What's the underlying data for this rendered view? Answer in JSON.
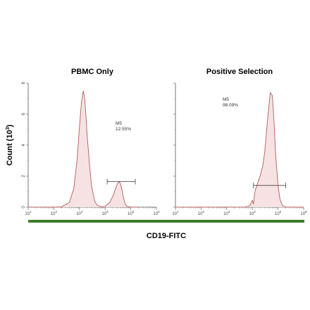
{
  "figure": {
    "x_axis_title": "CD19-FITC",
    "y_axis_title": "Count (10",
    "y_axis_title_exp": "3",
    "y_axis_title_end": ")",
    "bar_color": "#3a7d2c"
  },
  "chart_data": [
    {
      "type": "area",
      "title": "PBMC Only",
      "xscale": "log",
      "xlim": [
        10,
        1000000
      ],
      "ylim": [
        0,
        8
      ],
      "x_ticks": [
        {
          "base": "10",
          "exp": "1"
        },
        {
          "base": "10",
          "exp": "2"
        },
        {
          "base": "10",
          "exp": "3"
        },
        {
          "base": "10",
          "exp": "4"
        },
        {
          "base": "10",
          "exp": "5"
        },
        {
          "base": "10",
          "exp": "6"
        }
      ],
      "y_ticks": [
        "0",
        "2",
        "4",
        "6",
        "8"
      ],
      "series_color": "#b85c5c",
      "fill_color": "#f6e2e2",
      "x": [
        10,
        100,
        200,
        400,
        600,
        800,
        1000,
        1200,
        1400,
        1600,
        1800,
        2000,
        2500,
        3000,
        4000,
        5000,
        7000,
        10000,
        15000,
        20000,
        25000,
        30000,
        35000,
        40000,
        45000,
        50000,
        60000,
        70000,
        100000,
        200000
      ],
      "y": [
        0,
        0,
        0.02,
        0.3,
        1.2,
        3.0,
        5.2,
        6.8,
        7.5,
        7.0,
        5.8,
        4.6,
        2.6,
        1.3,
        0.35,
        0.12,
        0.02,
        0.05,
        0.3,
        0.7,
        1.15,
        1.5,
        1.65,
        1.5,
        1.15,
        0.75,
        0.2,
        0.05,
        0,
        0
      ],
      "gate": {
        "name": "M5",
        "percent": "12.55%",
        "x_start": 12000,
        "x_end": 150000,
        "y_level": 1.65
      }
    },
    {
      "type": "area",
      "title": "Positive Selection",
      "xscale": "log",
      "xlim": [
        10,
        1000000
      ],
      "ylim": [
        0,
        8
      ],
      "x_ticks": [
        {
          "base": "10",
          "exp": "1"
        },
        {
          "base": "10",
          "exp": "2"
        },
        {
          "base": "10",
          "exp": "3"
        },
        {
          "base": "10",
          "exp": "4"
        },
        {
          "base": "10",
          "exp": "5"
        },
        {
          "base": "10",
          "exp": "6"
        }
      ],
      "y_ticks": [],
      "series_color": "#b85c5c",
      "fill_color": "#f6e2e2",
      "x": [
        10,
        1000,
        5000,
        8000,
        10000,
        11000,
        12000,
        13000,
        15000,
        20000,
        25000,
        30000,
        40000,
        50000,
        60000,
        70000,
        80000,
        100000,
        120000,
        150000,
        200000,
        300000,
        1000000
      ],
      "y": [
        0,
        0,
        0,
        0.1,
        0.45,
        0.2,
        0.7,
        1.1,
        1.4,
        2.0,
        2.6,
        3.5,
        5.8,
        7.4,
        7.2,
        5.5,
        3.5,
        1.4,
        0.5,
        0.1,
        0,
        0,
        0
      ],
      "gate": {
        "name": "M5",
        "percent": "98.09%",
        "x_start": 11000,
        "x_end": 200000,
        "y_level": 1.4
      }
    }
  ]
}
